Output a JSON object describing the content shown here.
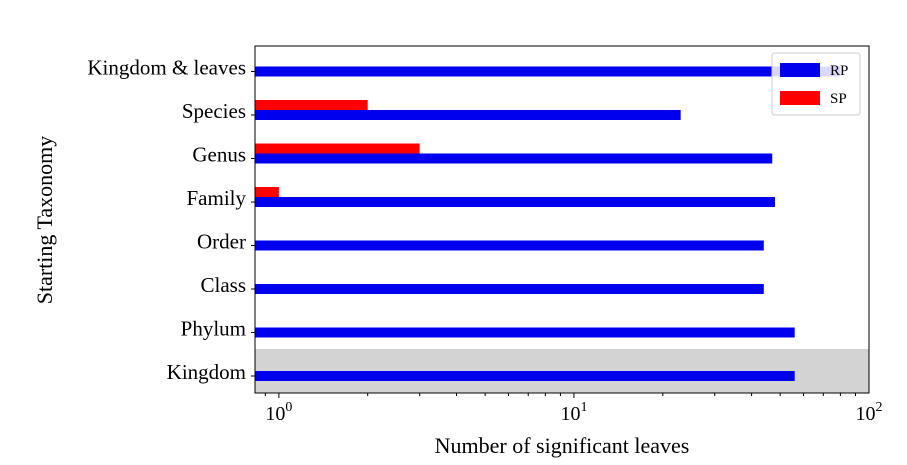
{
  "chart_data": {
    "type": "bar",
    "orientation": "horizontal",
    "categories": [
      "Kingdom",
      "Phylum",
      "Class",
      "Order",
      "Family",
      "Genus",
      "Species",
      "Kingdom & leaves"
    ],
    "series": [
      {
        "name": "RP",
        "color": "#0000ee",
        "values": [
          56,
          56,
          44,
          44,
          48,
          47,
          23,
          80
        ]
      },
      {
        "name": "SP",
        "color": "#ff0000",
        "values": [
          null,
          null,
          null,
          null,
          1,
          3,
          2,
          null
        ]
      }
    ],
    "xlabel": "Number of significant leaves",
    "ylabel": "Starting Taxonomy",
    "xscale": "log",
    "xlim": [
      0.83,
      100
    ],
    "xticks": [
      {
        "value": 1,
        "base": "10",
        "exp": "0"
      },
      {
        "value": 10,
        "base": "10",
        "exp": "1"
      },
      {
        "value": 100,
        "base": "10",
        "exp": "2"
      }
    ],
    "highlight_category": "Kingdom",
    "highlight_color": "#d3d3d3",
    "legend": {
      "position": "top-right",
      "entries": [
        "RP",
        "SP"
      ]
    },
    "grid": false
  }
}
